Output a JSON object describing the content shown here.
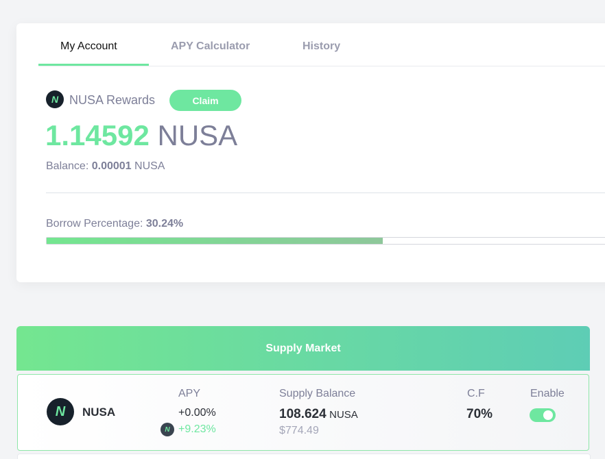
{
  "tabs": [
    "My Account",
    "APY Calculator",
    "History"
  ],
  "rewards": {
    "title": "NUSA Rewards",
    "button": "Claim",
    "amount": "1.14592",
    "unit": "NUSA",
    "balance_label": "Balance:",
    "balance_value": "0.00001",
    "balance_unit": "NUSA"
  },
  "borrow": {
    "label": "Borrow Percentage:",
    "value": "30.24%"
  },
  "supply_market": {
    "title": "Supply Market",
    "columns": [
      "APY",
      "Supply Balance",
      "C.F",
      "Enable"
    ],
    "rows": [
      {
        "asset": "NUSA",
        "apy": "+0.00%",
        "reward_apy": "+9.23%",
        "balance": "108.624",
        "balance_unit": "NUSA",
        "balance_usd": "$774.49",
        "cf": "70%"
      }
    ]
  }
}
